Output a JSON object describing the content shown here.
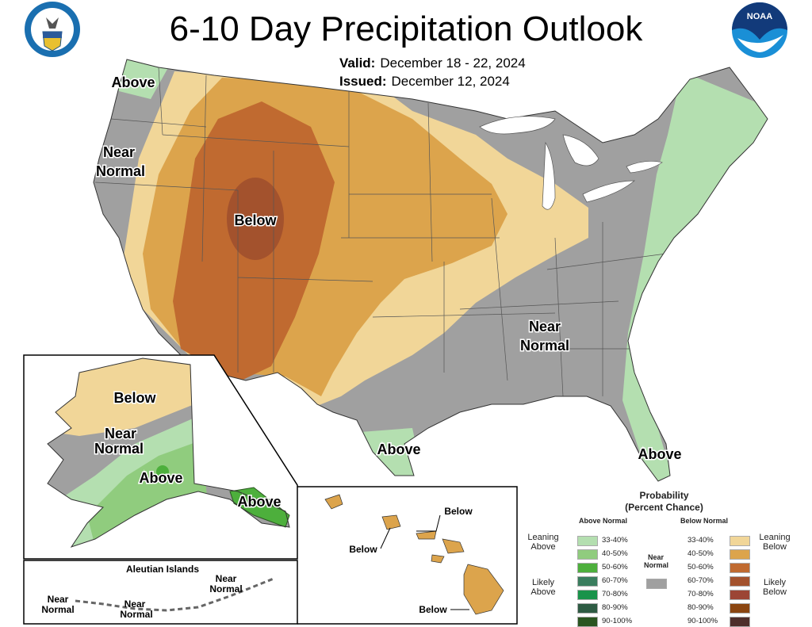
{
  "title": "6-10 Day Precipitation Outlook",
  "valid": {
    "label": "Valid:",
    "value": "December 18 - 22, 2024"
  },
  "issued": {
    "label": "Issued:",
    "value": "December 12, 2024"
  },
  "logos": {
    "left": "department-of-commerce-seal",
    "right": "NOAA"
  },
  "map_labels": {
    "pnw": "Above",
    "west_near_1": "Near",
    "west_near_2": "Normal",
    "below": "Below",
    "se_near_1": "Near",
    "se_near_2": "Normal",
    "texas": "Above",
    "florida": "Above"
  },
  "alaska": {
    "below": "Below",
    "near_1": "Near",
    "near_2": "Normal",
    "above": "Above",
    "panhandle": "Above"
  },
  "aleutians": {
    "title": "Aleutian Islands",
    "n1a": "Near",
    "n1b": "Normal",
    "n2a": "Near",
    "n2b": "Normal",
    "n3a": "Near",
    "n3b": "Normal"
  },
  "hawaii": {
    "b1": "Below",
    "b2": "Below",
    "b3": "Below"
  },
  "legend": {
    "title_1": "Probability",
    "title_2": "(Percent Chance)",
    "above_header": "Above Normal",
    "below_header": "Below Normal",
    "leaning_above": "Leaning Above",
    "likely_above": "Likely Above",
    "leaning_below": "Leaning Below",
    "likely_below": "Likely Below",
    "near_normal": "Near Normal",
    "ranges": [
      "33-40%",
      "40-50%",
      "50-60%",
      "60-70%",
      "70-80%",
      "80-90%",
      "90-100%"
    ],
    "above_colors": [
      "#b4dfb0",
      "#90cc7e",
      "#4daf3c",
      "#3a7d5e",
      "#19934a",
      "#2e5b43",
      "#2a5520"
    ],
    "below_colors": [
      "#f1d698",
      "#dca44c",
      "#c06a30",
      "#a3522d",
      "#9c4535",
      "#8a4510",
      "#4e2e2a"
    ],
    "near_color": "#a0a0a0"
  }
}
